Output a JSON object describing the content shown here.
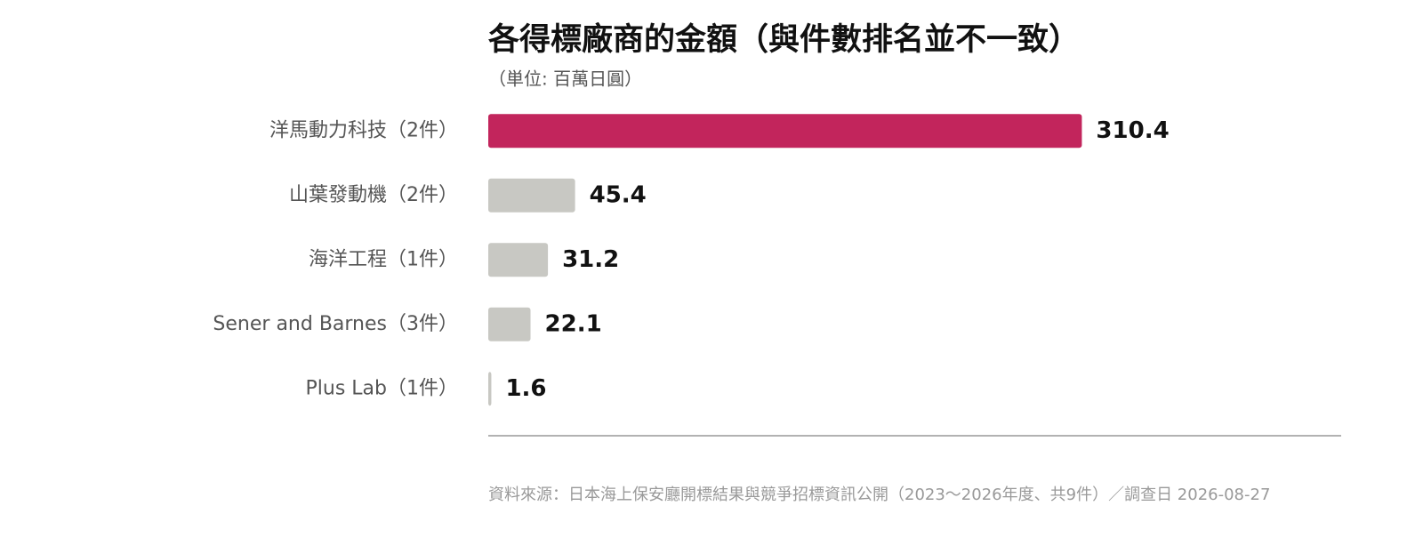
{
  "chart_data": {
    "type": "bar",
    "orientation": "horizontal",
    "title": "各得標廠商的金額（與件數排名並不一致）",
    "subtitle": "（単位: 百萬日圓）",
    "categories": [
      "洋馬動力科技（2件）",
      "山葉發動機（2件）",
      "海洋工程（1件）",
      "Sener and Barnes（3件）",
      "Plus Lab（1件）"
    ],
    "values": [
      310.4,
      45.4,
      31.2,
      22.1,
      1.6
    ],
    "colors": [
      "#c2255c",
      "#c8c8c3",
      "#c8c8c3",
      "#c8c8c3",
      "#c8c8c3"
    ],
    "xlim": [
      0,
      446
    ],
    "source": "資料來源：日本海上保安廳開標結果與競爭招標資訊公開（2023〜2026年度、共9件）／調查日 2026-08-27"
  }
}
